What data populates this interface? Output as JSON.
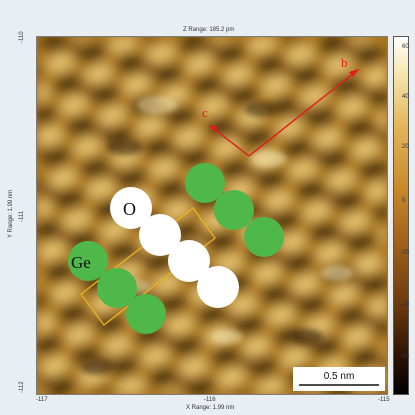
{
  "header": {
    "z_range": "Z Range: 185.2 pm"
  },
  "axes": {
    "x_range": "X Range: 1.99 nm",
    "y_range": "Y Range: 1.99 nm",
    "y_ticks": [
      "-110",
      "-111",
      "-112"
    ],
    "x_ticks": [
      "-117",
      "-116",
      "-115"
    ]
  },
  "colorbar": {
    "ticks": [
      "60",
      "40",
      "20",
      "0",
      "-20",
      "-40",
      "-60"
    ]
  },
  "overlay": {
    "labels": {
      "oxygen": "O",
      "germanium": "Ge",
      "direction_b": "b",
      "direction_c": "c"
    },
    "colors": {
      "ge_atom": "#4fb84a",
      "o_atom": "#ffffff",
      "arrow": "#e21c1c",
      "unit_cell": "#e8b020"
    }
  },
  "scale_bar": {
    "label": "0.5 nm"
  }
}
